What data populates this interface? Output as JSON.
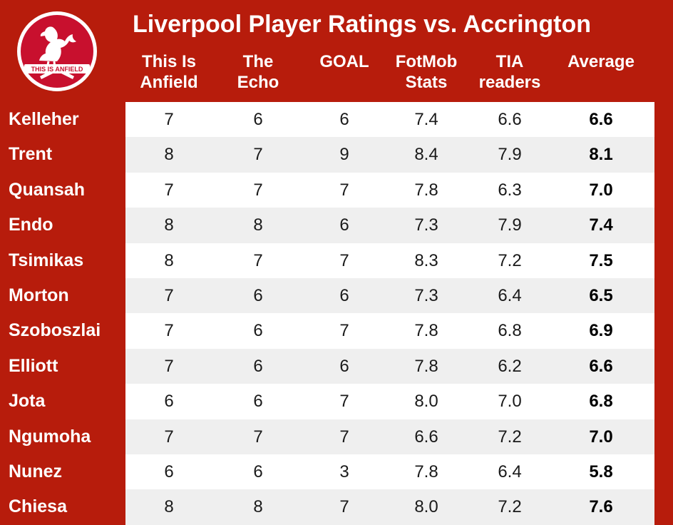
{
  "colors": {
    "background": "#b71c0c",
    "header_text": "#ffffff",
    "table_bg": "#ffffff",
    "row_alt": "#efefef",
    "cell_text": "#1a1a1a"
  },
  "logo": {
    "icon": "liverbird-crest-icon",
    "text": "THIS IS ANFIELD"
  },
  "chart_data": {
    "type": "table",
    "title": "Liverpool Player Ratings vs. Accrington",
    "columns": [
      {
        "line1": "This Is",
        "line2": "Anfield"
      },
      {
        "line1": "The",
        "line2": "Echo"
      },
      {
        "line1": "GOAL",
        "line2": ""
      },
      {
        "line1": "FotMob",
        "line2": "Stats"
      },
      {
        "line1": "TIA",
        "line2": "readers"
      },
      {
        "line1": "Average",
        "line2": ""
      }
    ],
    "rows": [
      {
        "player": "Kelleher",
        "values": [
          "7",
          "6",
          "6",
          "7.4",
          "6.6",
          "6.6"
        ]
      },
      {
        "player": "Trent",
        "values": [
          "8",
          "7",
          "9",
          "8.4",
          "7.9",
          "8.1"
        ]
      },
      {
        "player": "Quansah",
        "values": [
          "7",
          "7",
          "7",
          "7.8",
          "6.3",
          "7.0"
        ]
      },
      {
        "player": "Endo",
        "values": [
          "8",
          "8",
          "6",
          "7.3",
          "7.9",
          "7.4"
        ]
      },
      {
        "player": "Tsimikas",
        "values": [
          "8",
          "7",
          "7",
          "8.3",
          "7.2",
          "7.5"
        ]
      },
      {
        "player": "Morton",
        "values": [
          "7",
          "6",
          "6",
          "7.3",
          "6.4",
          "6.5"
        ]
      },
      {
        "player": "Szoboszlai",
        "values": [
          "7",
          "6",
          "7",
          "7.8",
          "6.8",
          "6.9"
        ]
      },
      {
        "player": "Elliott",
        "values": [
          "7",
          "6",
          "6",
          "7.8",
          "6.2",
          "6.6"
        ]
      },
      {
        "player": "Jota",
        "values": [
          "6",
          "6",
          "7",
          "8.0",
          "7.0",
          "6.8"
        ]
      },
      {
        "player": "Ngumoha",
        "values": [
          "7",
          "7",
          "7",
          "6.6",
          "7.2",
          "7.0"
        ]
      },
      {
        "player": "Nunez",
        "values": [
          "6",
          "6",
          "3",
          "7.8",
          "6.4",
          "5.8"
        ]
      },
      {
        "player": "Chiesa",
        "values": [
          "8",
          "8",
          "7",
          "8.0",
          "7.2",
          "7.6"
        ]
      }
    ]
  }
}
